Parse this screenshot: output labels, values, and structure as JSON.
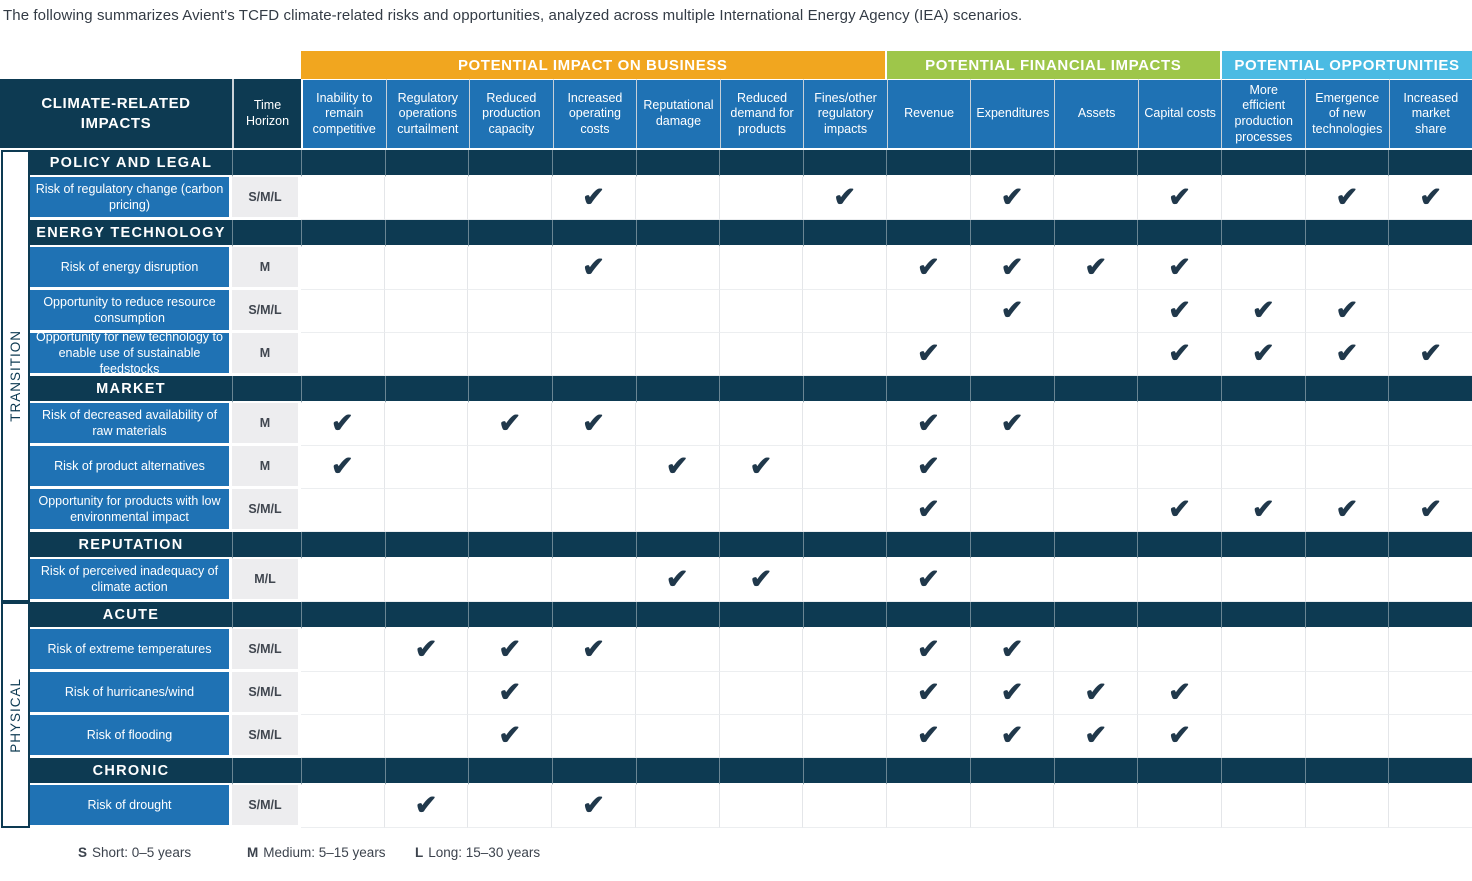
{
  "title": "The following summarizes Avient's TCFD climate-related risks and opportunities, analyzed across multiple International Energy Agency (IEA) scenarios.",
  "check_glyph": "✔",
  "colors": {
    "navy": "#0d3a52",
    "blue": "#1f72b4",
    "orange": "#f1a61f",
    "green": "#9ec64a",
    "light_blue": "#4bbbe3",
    "time_bg": "#ededef",
    "check": "#20384b"
  },
  "table": {
    "corner_header": "CLIMATE-RELATED IMPACTS",
    "time_horizon_header": "Time Horizon",
    "groups": [
      {
        "label": "POTENTIAL IMPACT ON BUSINESS",
        "color_key": "orange",
        "span": 7
      },
      {
        "label": "POTENTIAL FINANCIAL IMPACTS",
        "color_key": "green",
        "span": 4
      },
      {
        "label": "POTENTIAL OPPORTUNITIES",
        "color_key": "light_blue",
        "span": 3
      }
    ],
    "columns": [
      "Inability to remain competitive",
      "Regulatory operations curtailment",
      "Reduced production capacity",
      "Increased operating costs",
      "Reputational damage",
      "Reduced demand for products",
      "Fines/other regulatory impacts",
      "Revenue",
      "Expenditures",
      "Assets",
      "Capital costs",
      "More efficient production processes",
      "Emergence of new technologies",
      "Increased market share"
    ],
    "row_groups": [
      {
        "side_label": "TRANSITION",
        "sections": [
          {
            "header": "POLICY AND LEGAL",
            "rows": [
              {
                "label": "Risk of regulatory change (carbon pricing)",
                "time_horizon": "S/M/L",
                "checks": [
                  4,
                  7,
                  9,
                  11,
                  13,
                  14
                ]
              }
            ]
          },
          {
            "header": "ENERGY TECHNOLOGY",
            "rows": [
              {
                "label": "Risk of energy disruption",
                "time_horizon": "M",
                "checks": [
                  4,
                  8,
                  9,
                  10,
                  11
                ]
              },
              {
                "label": "Opportunity to reduce resource consumption",
                "time_horizon": "S/M/L",
                "checks": [
                  9,
                  11,
                  12,
                  13
                ]
              },
              {
                "label": "Opportunity for new technology to enable use of sustainable feedstocks",
                "time_horizon": "M",
                "checks": [
                  8,
                  11,
                  12,
                  13,
                  14
                ]
              }
            ]
          },
          {
            "header": "MARKET",
            "rows": [
              {
                "label": "Risk of decreased availability of raw materials",
                "time_horizon": "M",
                "checks": [
                  1,
                  3,
                  4,
                  8,
                  9
                ]
              },
              {
                "label": "Risk of product alternatives",
                "time_horizon": "M",
                "checks": [
                  1,
                  5,
                  6,
                  8
                ]
              },
              {
                "label": "Opportunity for products with low environmental impact",
                "time_horizon": "S/M/L",
                "checks": [
                  8,
                  11,
                  12,
                  13,
                  14
                ]
              }
            ]
          },
          {
            "header": "REPUTATION",
            "rows": [
              {
                "label": "Risk of perceived inadequacy of climate action",
                "time_horizon": "M/L",
                "checks": [
                  5,
                  6,
                  8
                ]
              }
            ]
          }
        ]
      },
      {
        "side_label": "PHYSICAL",
        "sections": [
          {
            "header": "ACUTE",
            "rows": [
              {
                "label": "Risk of extreme temperatures",
                "time_horizon": "S/M/L",
                "checks": [
                  2,
                  3,
                  4,
                  8,
                  9
                ]
              },
              {
                "label": "Risk of hurricanes/wind",
                "time_horizon": "S/M/L",
                "checks": [
                  3,
                  8,
                  9,
                  10,
                  11
                ]
              },
              {
                "label": "Risk of flooding",
                "time_horizon": "S/M/L",
                "checks": [
                  3,
                  8,
                  9,
                  10,
                  11
                ]
              }
            ]
          },
          {
            "header": "CHRONIC",
            "rows": [
              {
                "label": "Risk of drought",
                "time_horizon": "S/M/L",
                "checks": [
                  2,
                  4
                ]
              }
            ]
          }
        ]
      }
    ]
  },
  "legend": [
    {
      "key": "S",
      "text": "Short: 0–5 years"
    },
    {
      "key": "M",
      "text": "Medium: 5–15 years"
    },
    {
      "key": "L",
      "text": "Long: 15–30 years"
    }
  ]
}
